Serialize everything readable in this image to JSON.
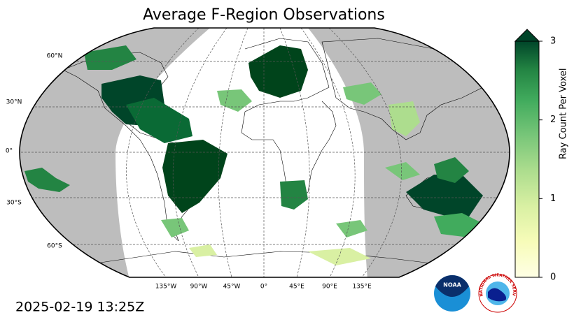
{
  "title": "Average F-Region Observations",
  "map": {
    "lat_labels": [
      "60°N",
      "30°N",
      "0°",
      "30°S",
      "60°S"
    ],
    "lon_labels": [
      "135°W",
      "90°W",
      "45°W",
      "0°",
      "45°E",
      "90°E",
      "135°E"
    ]
  },
  "colorbar": {
    "label": "Ray Count Per Voxel",
    "lim": [
      0,
      3
    ],
    "ticks": [
      0,
      1,
      2,
      3
    ]
  },
  "timestamp": "2025-02-19 13:25Z",
  "logos": {
    "noaa": "NOAA",
    "nws": "NATIONAL WEATHER SERVICE"
  }
}
